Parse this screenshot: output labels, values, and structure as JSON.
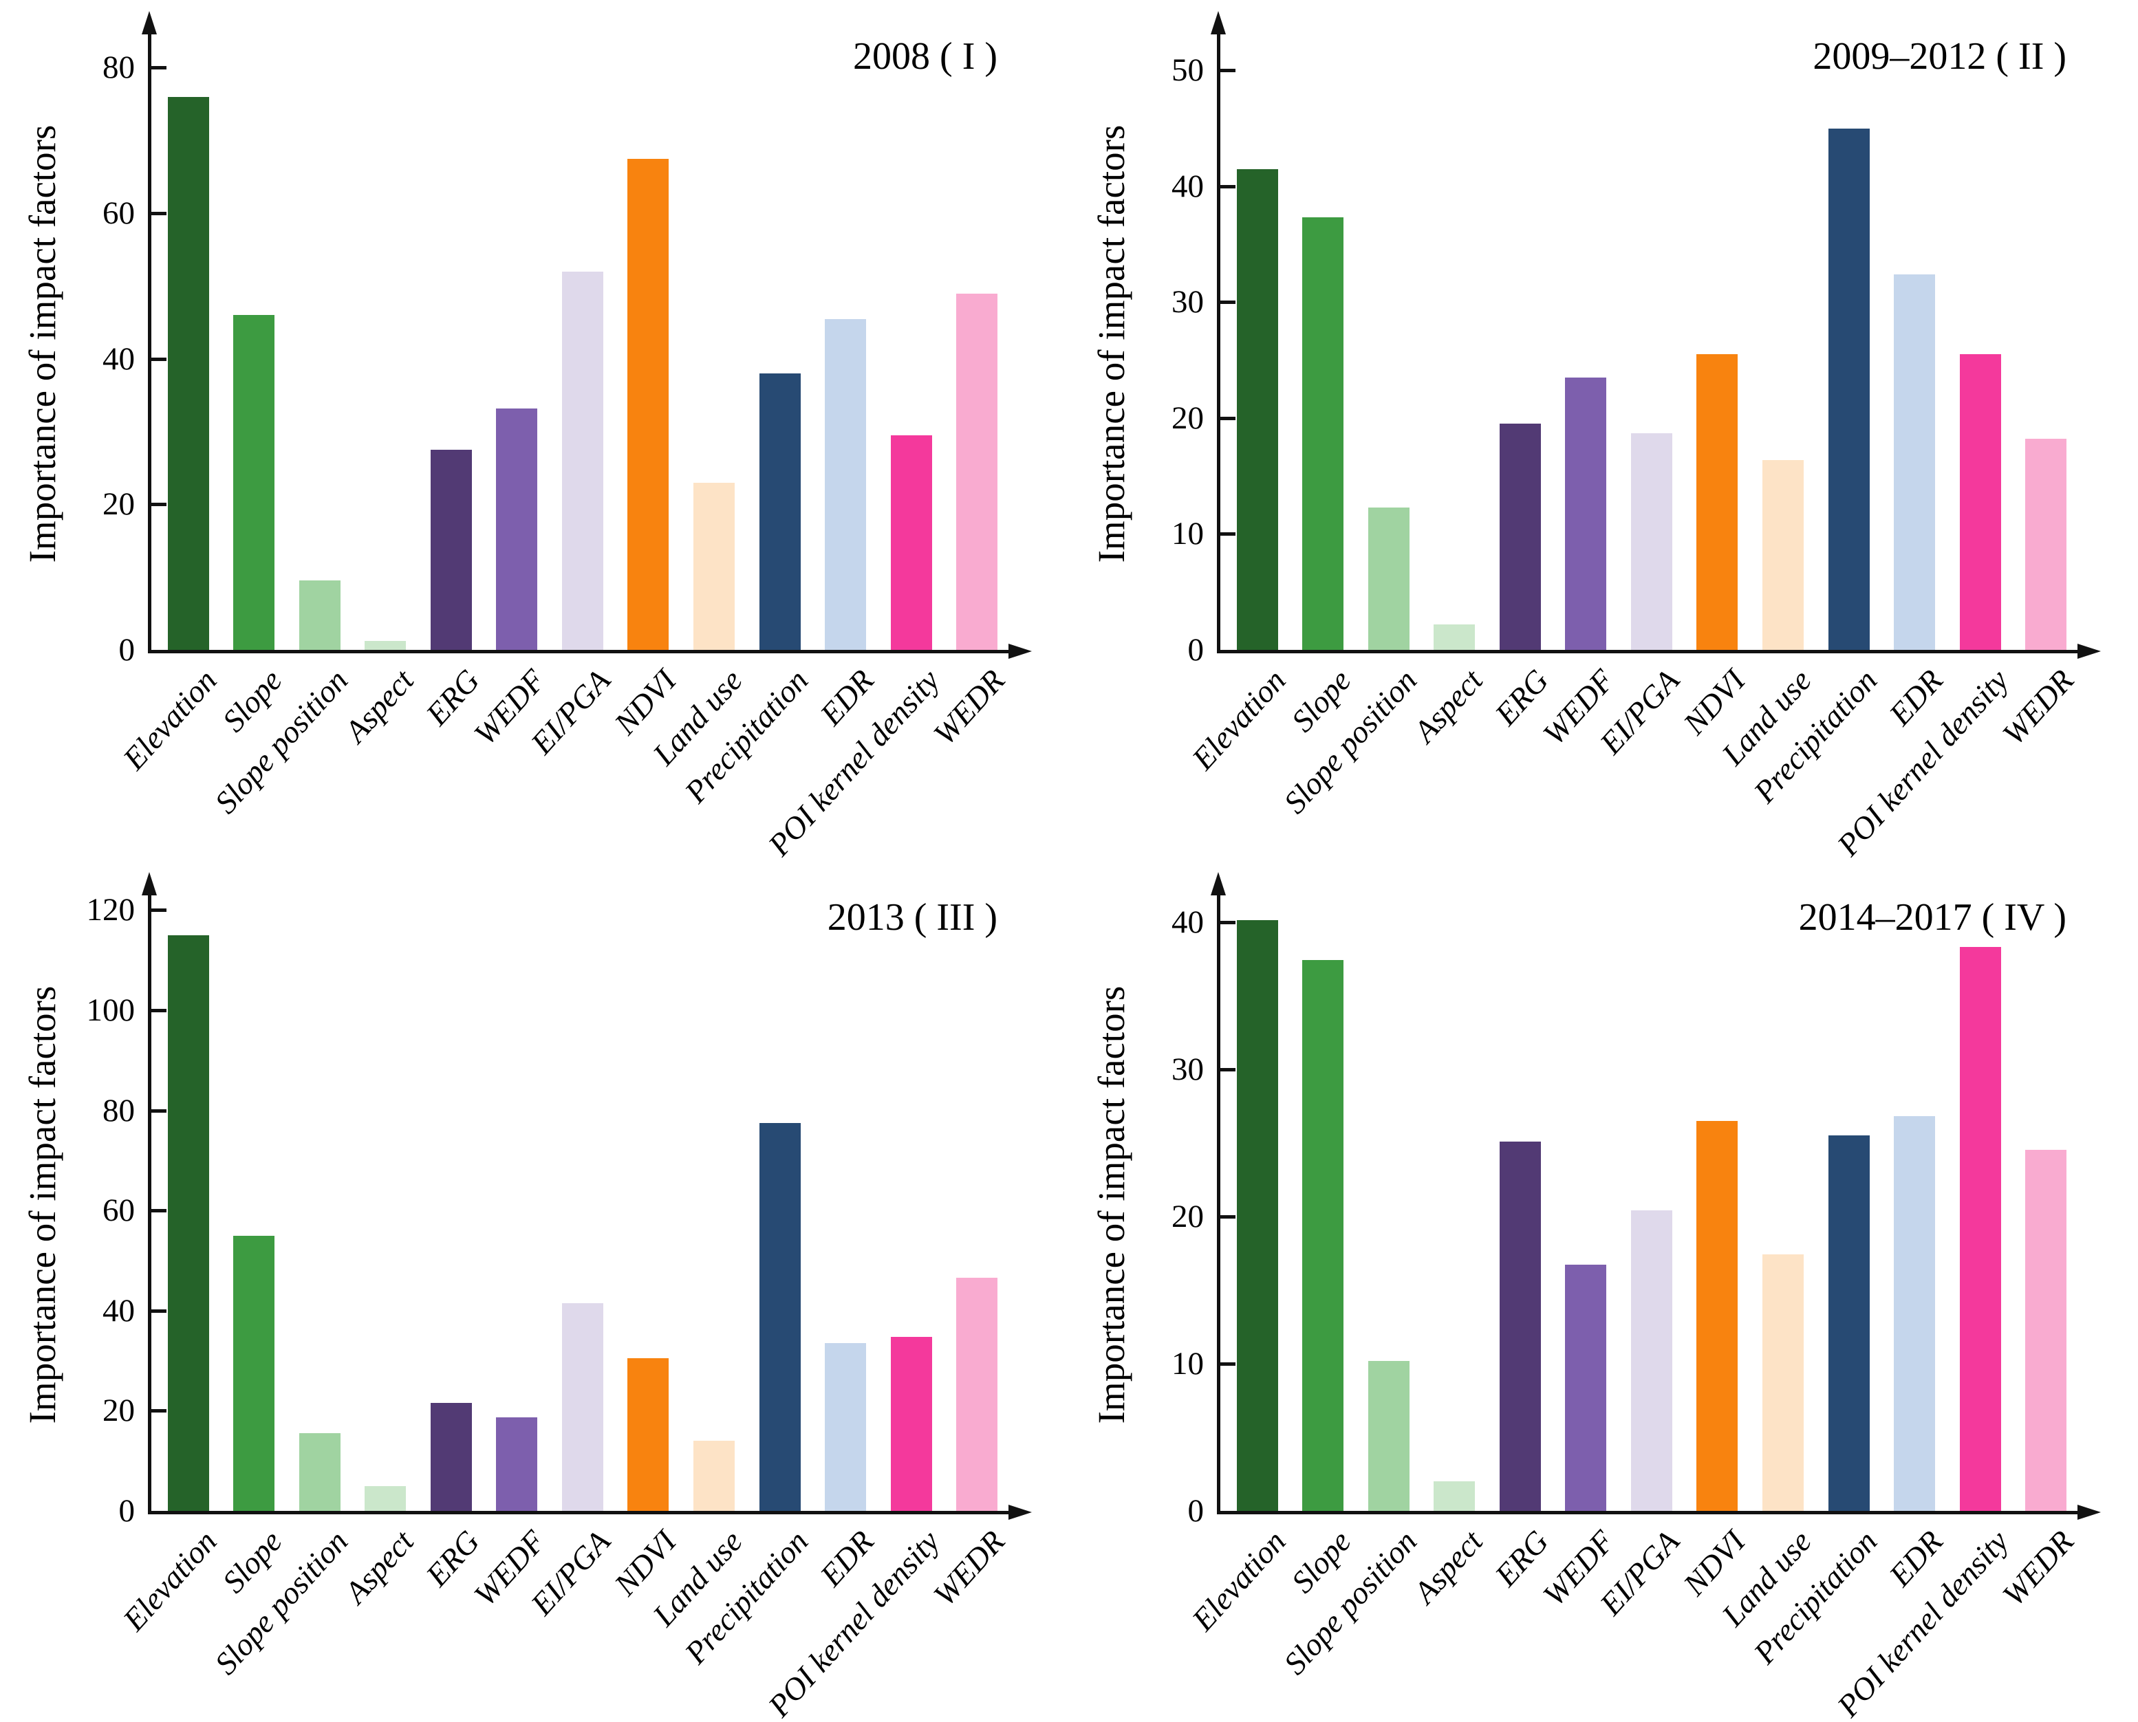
{
  "figure": {
    "background": "#ffffff",
    "axis_color": "#111111",
    "text_color": "#000000"
  },
  "categories": [
    "Elevation",
    "Slope",
    "Slope position",
    "Aspect",
    "ERG",
    "WEDF",
    "EI/PGA",
    "NDVI",
    "Land use",
    "Precipitation",
    "EDR",
    "POI kernel density",
    "WEDR"
  ],
  "bar_palette": [
    "#256329",
    "#3d9b41",
    "#a0d3a1",
    "#cbe7cb",
    "#523a74",
    "#7d5fad",
    "#dfd9eb",
    "#f8830f",
    "#fde3c6",
    "#274a73",
    "#c5d6ec",
    "#f4399c",
    "#f9abd0"
  ],
  "chart_data": [
    {
      "type": "bar",
      "title": "2008 ( I )",
      "ylabel": "Importance of impact factors",
      "xlabel": "",
      "categories": [
        "Elevation",
        "Slope",
        "Slope position",
        "Aspect",
        "ERG",
        "WEDF",
        "EI/PGA",
        "NDVI",
        "Land use",
        "Precipitation",
        "EDR",
        "POI kernel density",
        "WEDR"
      ],
      "values": [
        76,
        46,
        9.5,
        1.2,
        27.5,
        33.2,
        52,
        67.5,
        23,
        38,
        45.5,
        29.5,
        49
      ],
      "yticks": [
        0,
        20,
        40,
        60,
        80
      ],
      "ylim": [
        0,
        86
      ],
      "grid": false,
      "legend": false
    },
    {
      "type": "bar",
      "title": "2009–2012 ( II )",
      "ylabel": "Importance of impact factors",
      "xlabel": "",
      "categories": [
        "Elevation",
        "Slope",
        "Slope position",
        "Aspect",
        "ERG",
        "WEDF",
        "EI/PGA",
        "NDVI",
        "Land use",
        "Precipitation",
        "EDR",
        "POI kernel density",
        "WEDR"
      ],
      "values": [
        41.5,
        37.3,
        12.3,
        2.2,
        19.5,
        23.5,
        18.7,
        25.5,
        16.4,
        45,
        32.4,
        25.5,
        18.2
      ],
      "yticks": [
        0,
        10,
        20,
        30,
        40,
        50
      ],
      "ylim": [
        0,
        54
      ],
      "grid": false,
      "legend": false
    },
    {
      "type": "bar",
      "title": "2013 ( III )",
      "ylabel": "Importance of impact factors",
      "xlabel": "",
      "categories": [
        "Elevation",
        "Slope",
        "Slope position",
        "Aspect",
        "ERG",
        "WEDF",
        "EI/PGA",
        "NDVI",
        "Land use",
        "Precipitation",
        "EDR",
        "POI kernel density",
        "WEDR"
      ],
      "values": [
        115,
        55,
        15.5,
        5,
        21.5,
        18.7,
        41.5,
        30.5,
        14,
        77.5,
        33.5,
        34.8,
        46.5
      ],
      "yticks": [
        0,
        20,
        40,
        60,
        80,
        100,
        120
      ],
      "ylim": [
        0,
        125
      ],
      "grid": false,
      "legend": false
    },
    {
      "type": "bar",
      "title": "2014–2017 ( IV )",
      "ylabel": "Importance of impact factors",
      "xlabel": "",
      "categories": [
        "Elevation",
        "Slope",
        "Slope position",
        "Aspect",
        "ERG",
        "WEDF",
        "EI/PGA",
        "NDVI",
        "Land use",
        "Precipitation",
        "EDR",
        "POI kernel density",
        "WEDR"
      ],
      "values": [
        40.1,
        37.4,
        10.2,
        2,
        25.1,
        16.7,
        20.4,
        26.5,
        17.4,
        25.5,
        26.8,
        38.3,
        24.5
      ],
      "yticks": [
        0,
        10,
        20,
        30,
        40
      ],
      "ylim": [
        0,
        42.5
      ],
      "grid": false,
      "legend": false
    }
  ]
}
